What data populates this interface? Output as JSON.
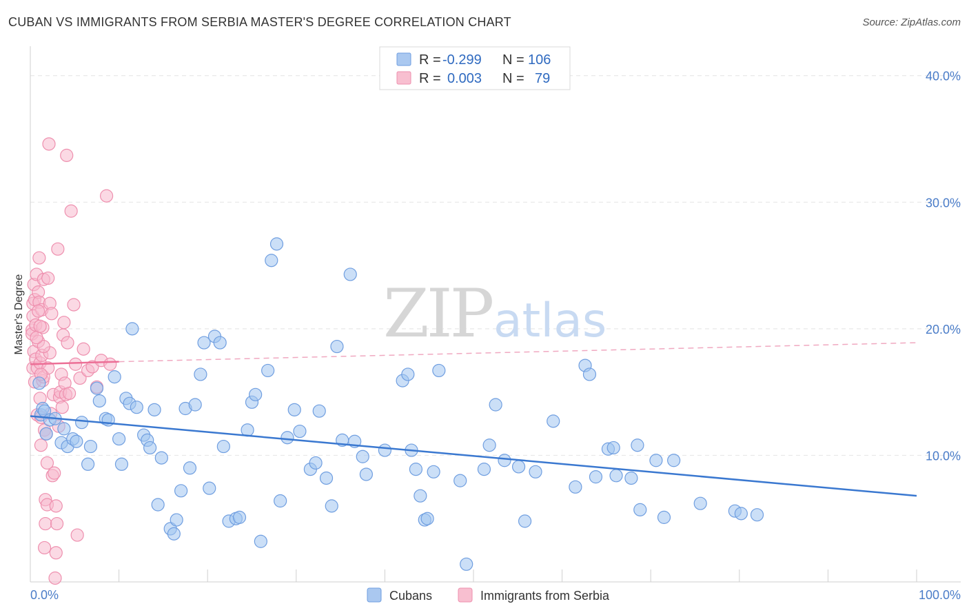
{
  "title": "CUBAN VS IMMIGRANTS FROM SERBIA MASTER'S DEGREE CORRELATION CHART",
  "source": "Source: ZipAtlas.com",
  "watermark": {
    "zip": "ZIP",
    "atlas": "atlas"
  },
  "legend": {
    "rows": [
      {
        "r_label": "R = ",
        "r_value": "-0.299",
        "n_label": "N = ",
        "n_value": "106",
        "color": "#aac8f0",
        "stroke": "#6f9ee0"
      },
      {
        "r_label": "R = ",
        "r_value": "0.003",
        "n_label": "N = ",
        "n_value": "79",
        "color": "#f8bfd0",
        "stroke": "#ee8fae"
      }
    ]
  },
  "bottom_legend": [
    {
      "label": "Cubans",
      "color": "#aac8f0",
      "stroke": "#6f9ee0"
    },
    {
      "label": "Immigrants from Serbia",
      "color": "#f8bfd0",
      "stroke": "#ee8fae"
    }
  ],
  "chart_data": {
    "type": "scatter",
    "title": "CUBAN VS IMMIGRANTS FROM SERBIA MASTER'S DEGREE CORRELATION CHART",
    "xlabel": "",
    "ylabel": "Master's Degree",
    "xlim": [
      0,
      100
    ],
    "ylim": [
      0,
      42
    ],
    "x_ticks": [
      {
        "value": 0,
        "label": "0.0%"
      },
      {
        "value": 100,
        "label": "100.0%"
      }
    ],
    "y_ticks": [
      {
        "value": 10,
        "label": "10.0%"
      },
      {
        "value": 20,
        "label": "20.0%"
      },
      {
        "value": 30,
        "label": "30.0%"
      },
      {
        "value": 40,
        "label": "40.0%"
      }
    ],
    "grid": true,
    "colors": {
      "cubans": "#3a78d0",
      "serbia": "#ec6f96"
    },
    "series": [
      {
        "name": "Cubans",
        "trend": {
          "x": [
            0,
            100
          ],
          "y": [
            13.1,
            6.8
          ],
          "style": "solid"
        },
        "points": [
          [
            1.0,
            15.7
          ],
          [
            1.2,
            13.2
          ],
          [
            1.4,
            13.7
          ],
          [
            1.6,
            13.5
          ],
          [
            1.8,
            11.7
          ],
          [
            2.2,
            12.8
          ],
          [
            2.8,
            12.9
          ],
          [
            3.5,
            11.0
          ],
          [
            3.8,
            12.1
          ],
          [
            4.2,
            10.7
          ],
          [
            4.8,
            11.3
          ],
          [
            5.2,
            11.1
          ],
          [
            5.8,
            12.6
          ],
          [
            6.5,
            9.3
          ],
          [
            6.8,
            10.7
          ],
          [
            7.5,
            15.3
          ],
          [
            7.8,
            14.3
          ],
          [
            8.5,
            12.9
          ],
          [
            8.8,
            12.8
          ],
          [
            9.5,
            16.2
          ],
          [
            10.0,
            11.3
          ],
          [
            10.3,
            9.3
          ],
          [
            10.8,
            14.5
          ],
          [
            11.2,
            14.1
          ],
          [
            11.5,
            20.0
          ],
          [
            12.0,
            13.8
          ],
          [
            12.8,
            11.6
          ],
          [
            13.2,
            11.2
          ],
          [
            13.5,
            10.6
          ],
          [
            14.0,
            13.6
          ],
          [
            14.4,
            6.1
          ],
          [
            14.8,
            9.8
          ],
          [
            15.8,
            4.2
          ],
          [
            16.2,
            3.8
          ],
          [
            16.5,
            4.9
          ],
          [
            17.0,
            7.2
          ],
          [
            17.5,
            13.7
          ],
          [
            18.0,
            9.0
          ],
          [
            18.6,
            14.0
          ],
          [
            19.2,
            16.4
          ],
          [
            19.6,
            18.9
          ],
          [
            20.2,
            7.4
          ],
          [
            20.8,
            19.4
          ],
          [
            21.4,
            18.9
          ],
          [
            21.8,
            10.7
          ],
          [
            22.4,
            4.8
          ],
          [
            23.2,
            5.0
          ],
          [
            23.6,
            5.1
          ],
          [
            24.5,
            12.0
          ],
          [
            25.0,
            14.2
          ],
          [
            25.4,
            14.8
          ],
          [
            26.0,
            3.2
          ],
          [
            26.8,
            16.7
          ],
          [
            27.2,
            25.4
          ],
          [
            27.8,
            26.7
          ],
          [
            28.2,
            6.4
          ],
          [
            29.0,
            11.4
          ],
          [
            29.8,
            13.6
          ],
          [
            30.4,
            11.9
          ],
          [
            31.6,
            8.9
          ],
          [
            32.2,
            9.4
          ],
          [
            32.6,
            13.5
          ],
          [
            33.4,
            8.2
          ],
          [
            34.0,
            6.0
          ],
          [
            34.6,
            18.6
          ],
          [
            35.2,
            11.2
          ],
          [
            36.1,
            24.3
          ],
          [
            36.6,
            11.1
          ],
          [
            37.5,
            9.9
          ],
          [
            37.9,
            8.5
          ],
          [
            40.0,
            10.4
          ],
          [
            42.0,
            15.9
          ],
          [
            42.6,
            16.4
          ],
          [
            43.0,
            10.4
          ],
          [
            43.5,
            8.9
          ],
          [
            44.0,
            6.8
          ],
          [
            44.5,
            4.9
          ],
          [
            44.8,
            5.0
          ],
          [
            45.5,
            8.7
          ],
          [
            46.1,
            16.7
          ],
          [
            48.5,
            8.0
          ],
          [
            49.2,
            1.4
          ],
          [
            51.2,
            8.9
          ],
          [
            51.8,
            10.8
          ],
          [
            52.5,
            14.0
          ],
          [
            53.5,
            9.6
          ],
          [
            55.1,
            9.1
          ],
          [
            55.8,
            4.8
          ],
          [
            57.0,
            8.7
          ],
          [
            59.0,
            12.7
          ],
          [
            61.5,
            7.5
          ],
          [
            62.6,
            17.1
          ],
          [
            63.1,
            16.4
          ],
          [
            63.8,
            8.3
          ],
          [
            65.2,
            10.5
          ],
          [
            65.8,
            10.6
          ],
          [
            66.1,
            8.4
          ],
          [
            67.8,
            8.2
          ],
          [
            68.5,
            10.8
          ],
          [
            68.8,
            5.7
          ],
          [
            70.6,
            9.6
          ],
          [
            71.5,
            5.1
          ],
          [
            72.6,
            9.6
          ],
          [
            75.6,
            6.2
          ],
          [
            79.5,
            5.6
          ],
          [
            80.2,
            5.4
          ],
          [
            82.0,
            5.3
          ]
        ]
      },
      {
        "name": "Immigrants from Serbia",
        "trend": {
          "x": [
            0,
            10
          ],
          "y": [
            17.2,
            17.4
          ],
          "style": "solid",
          "extended": {
            "x": [
              10,
              100
            ],
            "y": [
              17.4,
              18.9
            ],
            "style": "dashed"
          }
        },
        "points": [
          [
            0.2,
            19.9
          ],
          [
            0.2,
            19.6
          ],
          [
            0.3,
            22.0
          ],
          [
            0.3,
            21.0
          ],
          [
            0.3,
            16.9
          ],
          [
            0.4,
            18.2
          ],
          [
            0.4,
            23.5
          ],
          [
            0.5,
            22.3
          ],
          [
            0.5,
            15.8
          ],
          [
            0.6,
            17.6
          ],
          [
            0.6,
            20.3
          ],
          [
            0.7,
            24.3
          ],
          [
            0.8,
            13.2
          ],
          [
            0.8,
            16.9
          ],
          [
            0.9,
            19.0
          ],
          [
            0.9,
            22.9
          ],
          [
            1.0,
            25.6
          ],
          [
            1.0,
            22.1
          ],
          [
            1.1,
            14.5
          ],
          [
            1.1,
            17.3
          ],
          [
            1.2,
            10.8
          ],
          [
            1.2,
            13.0
          ],
          [
            1.3,
            21.5
          ],
          [
            1.3,
            17.9
          ],
          [
            1.4,
            15.9
          ],
          [
            1.4,
            20.1
          ],
          [
            1.5,
            16.2
          ],
          [
            1.5,
            23.9
          ],
          [
            1.6,
            2.7
          ],
          [
            1.6,
            12.0
          ],
          [
            1.7,
            6.5
          ],
          [
            1.7,
            4.6
          ],
          [
            1.8,
            11.7
          ],
          [
            1.9,
            9.4
          ],
          [
            1.9,
            6.1
          ],
          [
            2.0,
            16.9
          ],
          [
            2.0,
            24.0
          ],
          [
            2.1,
            34.6
          ],
          [
            2.2,
            22.0
          ],
          [
            2.2,
            18.1
          ],
          [
            2.3,
            13.3
          ],
          [
            2.4,
            21.2
          ],
          [
            2.5,
            8.4
          ],
          [
            2.6,
            14.8
          ],
          [
            2.7,
            8.6
          ],
          [
            2.8,
            0.3
          ],
          [
            2.9,
            2.3
          ],
          [
            2.9,
            6.0
          ],
          [
            3.0,
            4.6
          ],
          [
            3.1,
            26.3
          ],
          [
            3.2,
            12.3
          ],
          [
            3.3,
            14.6
          ],
          [
            3.4,
            15.0
          ],
          [
            3.5,
            16.4
          ],
          [
            3.6,
            13.8
          ],
          [
            3.7,
            19.5
          ],
          [
            3.8,
            20.5
          ],
          [
            3.9,
            15.7
          ],
          [
            4.0,
            14.8
          ],
          [
            4.1,
            33.7
          ],
          [
            4.2,
            18.9
          ],
          [
            4.4,
            14.9
          ],
          [
            4.6,
            29.3
          ],
          [
            4.9,
            21.9
          ],
          [
            5.1,
            17.2
          ],
          [
            5.3,
            3.7
          ],
          [
            5.6,
            16.1
          ],
          [
            6.0,
            18.4
          ],
          [
            6.5,
            16.7
          ],
          [
            7.0,
            17.0
          ],
          [
            7.5,
            15.4
          ],
          [
            8.0,
            17.5
          ],
          [
            8.6,
            30.5
          ],
          [
            9.0,
            17.2
          ],
          [
            1.5,
            18.6
          ],
          [
            0.7,
            19.3
          ],
          [
            1.1,
            20.2
          ],
          [
            0.9,
            21.4
          ],
          [
            1.2,
            16.4
          ]
        ]
      }
    ]
  }
}
